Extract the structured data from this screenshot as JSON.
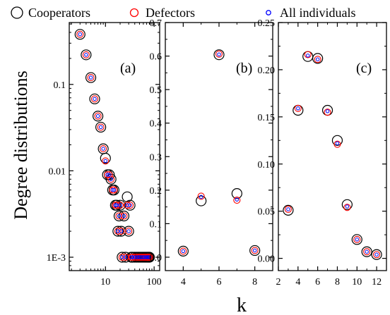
{
  "legend": [
    {
      "name": "Cooperators",
      "color": "#000000",
      "size": "large"
    },
    {
      "name": "Defectors",
      "color": "#ff0000",
      "size": "medium"
    },
    {
      "name": "All individuals",
      "color": "#0000ff",
      "size": "small"
    }
  ],
  "shared": {
    "ylabel": "Degree distributions",
    "xlabel": "k"
  },
  "chart_data": [
    {
      "type": "scatter",
      "panel_label": "(a)",
      "xscale": "log",
      "yscale": "log",
      "xlim": [
        1.8,
        130
      ],
      "ylim": [
        0.0007,
        0.52
      ],
      "xticks": [
        10,
        100
      ],
      "xtick_labels": [
        "10",
        "100"
      ],
      "yticks": [
        0.001,
        0.01,
        0.1
      ],
      "ytick_labels": [
        "1E-3",
        "0.01",
        "0.1"
      ],
      "series": [
        {
          "name": "Cooperators",
          "x": [
            3,
            4,
            5,
            6,
            7,
            8,
            9,
            10,
            11,
            12,
            13,
            14,
            15,
            16,
            17,
            18,
            19,
            20,
            21,
            22,
            24,
            26,
            28,
            30,
            32,
            34,
            36,
            40,
            44,
            48,
            52,
            56,
            60,
            64,
            68,
            72,
            76,
            80
          ],
          "y": [
            0.38,
            0.22,
            0.12,
            0.068,
            0.043,
            0.032,
            0.018,
            0.014,
            0.009,
            0.009,
            0.008,
            0.006,
            0.006,
            0.004,
            0.004,
            0.002,
            0.003,
            0.004,
            0.002,
            0.001,
            0.003,
            0.001,
            0.005,
            0.002,
            0.004,
            0.001,
            0.001,
            0.001,
            0.001,
            0.001,
            0.001,
            0.001,
            0.001,
            0.001,
            0.001,
            0.001,
            0.001,
            0.001
          ]
        },
        {
          "name": "Defectors",
          "x": [
            3,
            4,
            5,
            6,
            7,
            8,
            9,
            10,
            11,
            12,
            13,
            14,
            15,
            16,
            17,
            18,
            19,
            20,
            21,
            22,
            24,
            26,
            28,
            30,
            32,
            34,
            36,
            40,
            44,
            48,
            52,
            56,
            60,
            64,
            68,
            72,
            76,
            80
          ],
          "y": [
            0.38,
            0.22,
            0.12,
            0.068,
            0.043,
            0.032,
            0.018,
            0.013,
            0.009,
            0.009,
            0.008,
            0.006,
            0.006,
            0.004,
            0.004,
            0.002,
            0.003,
            0.004,
            0.002,
            0.001,
            0.003,
            0.001,
            0.004,
            0.002,
            0.004,
            0.001,
            0.001,
            0.001,
            0.001,
            0.001,
            0.001,
            0.001,
            0.001,
            0.001,
            0.001,
            0.001,
            0.001,
            0.001
          ]
        },
        {
          "name": "All individuals",
          "x": [
            3,
            4,
            5,
            6,
            7,
            8,
            9,
            10,
            11,
            12,
            13,
            14,
            15,
            16,
            17,
            18,
            19,
            20,
            21,
            22,
            24,
            26,
            28,
            30,
            32,
            34,
            36,
            40,
            44,
            48,
            52,
            56,
            60,
            64,
            68,
            72,
            76,
            80
          ],
          "y": [
            0.38,
            0.22,
            0.12,
            0.068,
            0.043,
            0.032,
            0.018,
            0.013,
            0.009,
            0.009,
            0.008,
            0.006,
            0.006,
            0.004,
            0.004,
            0.002,
            0.003,
            0.004,
            0.002,
            0.001,
            0.003,
            0.001,
            0.004,
            0.002,
            0.004,
            0.001,
            0.001,
            0.001,
            0.001,
            0.001,
            0.001,
            0.001,
            0.001,
            0.001,
            0.001,
            0.001,
            0.001,
            0.001
          ]
        }
      ]
    },
    {
      "type": "scatter",
      "panel_label": "(b)",
      "xlim": [
        3,
        9
      ],
      "ylim": [
        -0.04,
        0.7
      ],
      "xticks": [
        4,
        6,
        8
      ],
      "xtick_labels": [
        "4",
        "6",
        "8"
      ],
      "yticks": [
        0.0,
        0.1,
        0.2,
        0.3,
        0.4,
        0.5,
        0.6,
        0.7
      ],
      "ytick_labels": [
        "0.0",
        "0.1",
        "0.2",
        "0.3",
        "0.4",
        "0.5",
        "0.6",
        "0.7"
      ],
      "series": [
        {
          "name": "Cooperators",
          "x": [
            4,
            5,
            6,
            7,
            8
          ],
          "y": [
            0.018,
            0.168,
            0.604,
            0.19,
            0.02
          ]
        },
        {
          "name": "Defectors",
          "x": [
            4,
            5,
            6,
            7,
            8
          ],
          "y": [
            0.018,
            0.182,
            0.606,
            0.17,
            0.02
          ]
        },
        {
          "name": "All individuals",
          "x": [
            4,
            5,
            6,
            7,
            8
          ],
          "y": [
            0.018,
            0.18,
            0.605,
            0.172,
            0.02
          ]
        }
      ]
    },
    {
      "type": "scatter",
      "panel_label": "(c)",
      "xlim": [
        2,
        13
      ],
      "ylim": [
        -0.013,
        0.25
      ],
      "xticks": [
        2,
        4,
        6,
        8,
        10,
        12
      ],
      "xtick_labels": [
        "2",
        "4",
        "6",
        "8",
        "10",
        "12"
      ],
      "yticks": [
        0.0,
        0.05,
        0.1,
        0.15,
        0.2,
        0.25
      ],
      "ytick_labels": [
        "0.00",
        "0.05",
        "0.10",
        "0.15",
        "0.20",
        "0.25"
      ],
      "series": [
        {
          "name": "Cooperators",
          "x": [
            3,
            4,
            5,
            6,
            7,
            8,
            9,
            10,
            11,
            12
          ],
          "y": [
            0.051,
            0.157,
            0.214,
            0.212,
            0.157,
            0.125,
            0.057,
            0.02,
            0.007,
            0.004
          ]
        },
        {
          "name": "Defectors",
          "x": [
            3,
            4,
            5,
            6,
            7,
            8,
            9,
            10,
            11,
            12
          ],
          "y": [
            0.052,
            0.159,
            0.216,
            0.211,
            0.155,
            0.121,
            0.054,
            0.02,
            0.007,
            0.004
          ]
        },
        {
          "name": "All individuals",
          "x": [
            3,
            4,
            5,
            6,
            7,
            8,
            9,
            10,
            11,
            12
          ],
          "y": [
            0.052,
            0.159,
            0.215,
            0.211,
            0.156,
            0.122,
            0.055,
            0.02,
            0.007,
            0.004
          ]
        }
      ]
    }
  ]
}
